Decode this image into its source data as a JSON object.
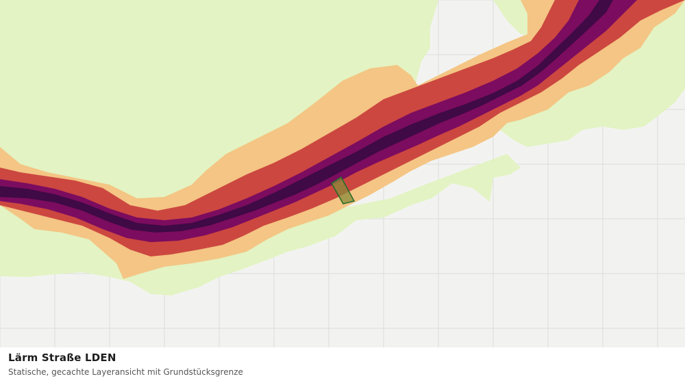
{
  "caption": {
    "title": "Lärm Straße LDEN",
    "subtitle": "Statische, gecachte Layeransicht mit Grundstücksgrenze"
  },
  "map": {
    "background_color": "#f2f3f1",
    "grid_color": "#dcdddb",
    "noise_bands": [
      {
        "name": "band-1-outer",
        "color": "#e3f3c3"
      },
      {
        "name": "band-2",
        "color": "#f4c584"
      },
      {
        "name": "band-3",
        "color": "#cc4740"
      },
      {
        "name": "band-4",
        "color": "#7c0c5f"
      },
      {
        "name": "band-5-core",
        "color": "#3f0a45"
      }
    ],
    "parcel": {
      "fill": "#8a8a3a",
      "stroke": "#1f6b2a"
    }
  }
}
